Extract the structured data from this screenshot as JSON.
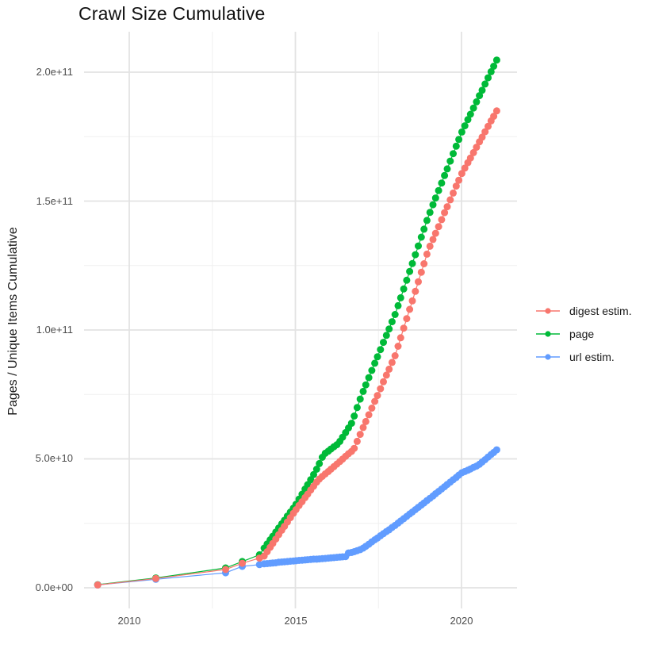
{
  "title": "Crawl Size Cumulative",
  "chart_data": {
    "type": "scatter",
    "title": "Crawl Size Cumulative",
    "xlabel": "",
    "ylabel": "Pages / Unique Items Cumulative",
    "values_unit": "1e9 (values below are billions; plotted axis shows e-notation)",
    "legend_position": "right",
    "grid": true,
    "x_domain": [
      2008.66,
      2021.67
    ],
    "y_domain_billions": [
      -8.3,
      215.4
    ],
    "x_ticks": [
      {
        "label": "2010",
        "value": 2010
      },
      {
        "label": "2015",
        "value": 2015
      },
      {
        "label": "2020",
        "value": 2020
      }
    ],
    "x_minor": [
      2012.5,
      2017.5
    ],
    "y_ticks": [
      {
        "label": "0.0e+00",
        "value": 0
      },
      {
        "label": "5.0e+10",
        "value": 50
      },
      {
        "label": "1.0e+11",
        "value": 100
      },
      {
        "label": "1.5e+11",
        "value": 150
      },
      {
        "label": "2.0e+11",
        "value": 200
      }
    ],
    "y_minor": [
      25,
      75,
      125,
      175
    ],
    "x": [
      2009.05,
      2010.8,
      2012.9,
      2013.4,
      2013.92,
      2014.06,
      2014.15,
      2014.24,
      2014.32,
      2014.41,
      2014.5,
      2014.59,
      2014.67,
      2014.76,
      2014.85,
      2014.94,
      2015.02,
      2015.11,
      2015.2,
      2015.29,
      2015.37,
      2015.46,
      2015.55,
      2015.64,
      2015.72,
      2015.81,
      2015.9,
      2015.99,
      2016.07,
      2016.16,
      2016.25,
      2016.34,
      2016.42,
      2016.51,
      2016.6,
      2016.69,
      2016.77,
      2016.86,
      2016.95,
      2017.04,
      2017.12,
      2017.21,
      2017.3,
      2017.39,
      2017.47,
      2017.56,
      2017.65,
      2017.74,
      2017.82,
      2017.91,
      2018.0,
      2018.09,
      2018.17,
      2018.26,
      2018.35,
      2018.44,
      2018.52,
      2018.61,
      2018.7,
      2018.79,
      2018.87,
      2018.96,
      2019.05,
      2019.14,
      2019.22,
      2019.31,
      2019.4,
      2019.49,
      2019.57,
      2019.66,
      2019.75,
      2019.84,
      2019.92,
      2020.01,
      2020.1,
      2020.19,
      2020.27,
      2020.36,
      2020.45,
      2020.54,
      2020.62,
      2020.71,
      2020.8,
      2020.89,
      2020.97,
      2021.06
    ],
    "series": [
      {
        "name": "digest estim.",
        "color": "#F8766D",
        "values": [
          1.1,
          3.6,
          7.1,
          9.5,
          11.5,
          12.3,
          14.0,
          15.7,
          17.2,
          18.9,
          20.6,
          22.3,
          23.8,
          25.5,
          27.2,
          28.9,
          30.3,
          31.9,
          33.4,
          35.0,
          36.3,
          37.9,
          39.4,
          41.0,
          42.2,
          43.2,
          44.2,
          45.1,
          46.0,
          47.0,
          48.0,
          49.0,
          49.9,
          51.0,
          52.0,
          52.9,
          54.1,
          56.8,
          59.5,
          62.2,
          64.5,
          67.1,
          69.7,
          72.3,
          74.6,
          77.2,
          79.9,
          82.5,
          84.8,
          87.4,
          90.0,
          93.7,
          97.0,
          100.7,
          104.4,
          108.0,
          111.3,
          115.0,
          118.7,
          122.4,
          125.7,
          129.4,
          132.5,
          135.1,
          137.5,
          140.1,
          142.8,
          145.5,
          147.8,
          150.5,
          153.1,
          155.8,
          158.1,
          160.7,
          162.8,
          164.9,
          166.7,
          168.8,
          170.9,
          173.0,
          174.8,
          176.9,
          179.0,
          181.1,
          182.9,
          185.0
        ]
      },
      {
        "name": "page",
        "color": "#00BA38",
        "values": [
          1.2,
          3.8,
          7.7,
          10.2,
          12.8,
          15.4,
          17.0,
          18.6,
          20.0,
          21.6,
          23.2,
          24.8,
          26.2,
          27.8,
          29.4,
          30.9,
          32.4,
          34.4,
          36.3,
          38.3,
          40.0,
          41.9,
          43.9,
          46.0,
          48.2,
          50.6,
          52.2,
          53.0,
          53.8,
          54.7,
          55.5,
          56.8,
          58.4,
          60.2,
          62.0,
          63.8,
          66.6,
          69.9,
          73.2,
          76.2,
          78.7,
          81.5,
          84.3,
          87.1,
          89.6,
          92.4,
          95.2,
          97.9,
          100.4,
          103.2,
          106.0,
          109.4,
          112.5,
          115.9,
          119.3,
          122.7,
          125.8,
          129.2,
          132.6,
          136.0,
          139.1,
          142.5,
          145.6,
          148.6,
          151.2,
          154.1,
          157.0,
          159.9,
          162.5,
          165.5,
          168.4,
          171.3,
          173.9,
          176.8,
          179.2,
          181.6,
          183.7,
          186.1,
          188.5,
          190.9,
          193.0,
          195.4,
          197.8,
          200.2,
          202.3,
          204.7
        ]
      },
      {
        "name": "url estim.",
        "color": "#619CFF",
        "values": [
          1.1,
          3.3,
          5.8,
          8.3,
          9.0,
          9.3,
          9.4,
          9.5,
          9.6,
          9.7,
          9.9,
          10.0,
          10.1,
          10.2,
          10.3,
          10.4,
          10.5,
          10.6,
          10.7,
          10.8,
          10.9,
          11.0,
          11.1,
          11.1,
          11.2,
          11.3,
          11.4,
          11.5,
          11.6,
          11.7,
          11.8,
          11.9,
          12.0,
          12.1,
          13.5,
          13.7,
          14.0,
          14.4,
          14.8,
          15.4,
          16.1,
          16.9,
          17.8,
          18.6,
          19.3,
          20.2,
          21.0,
          21.8,
          22.5,
          23.4,
          24.2,
          25.1,
          25.9,
          26.8,
          27.7,
          28.6,
          29.4,
          30.3,
          31.2,
          32.1,
          32.9,
          33.8,
          34.7,
          35.6,
          36.5,
          37.4,
          38.3,
          39.2,
          40.1,
          41.0,
          41.9,
          42.8,
          43.7,
          44.6,
          45.1,
          45.6,
          46.1,
          46.7,
          47.2,
          47.9,
          48.8,
          49.7,
          50.7,
          51.7,
          52.5,
          53.5
        ]
      }
    ]
  },
  "legend": {
    "items": [
      {
        "label": "digest estim."
      },
      {
        "label": "page"
      },
      {
        "label": "url estim."
      }
    ]
  }
}
